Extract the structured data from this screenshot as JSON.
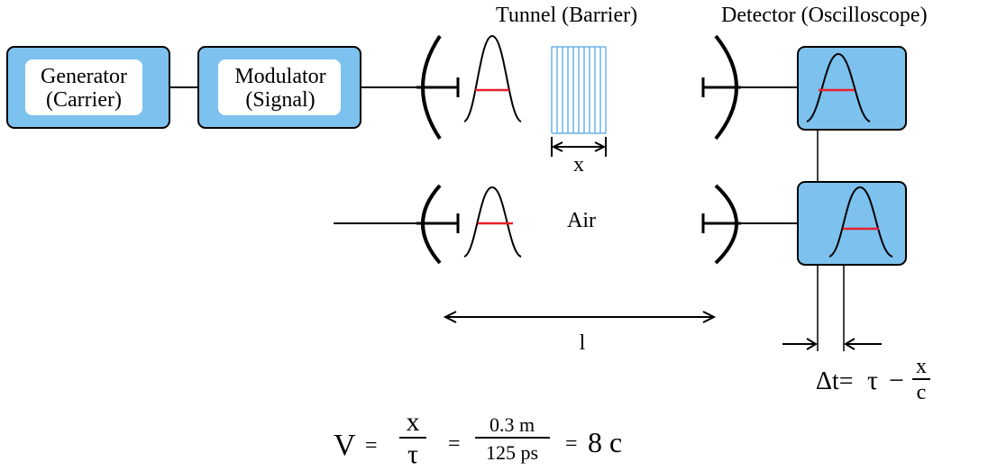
{
  "blocks": {
    "generator": {
      "line1": "Generator",
      "line2": "(Carrier)"
    },
    "modulator": {
      "line1": "Modulator",
      "line2": "(Signal)"
    }
  },
  "labels": {
    "tunnel": "Tunnel (Barrier)",
    "detector": "Detector (Oscilloscope)",
    "air": "Air",
    "barrier_width": "x",
    "distance": "l"
  },
  "delay": {
    "lhs": "Δt=",
    "tau": "τ",
    "minus": "−",
    "num": "x",
    "den": "c"
  },
  "velocity": {
    "v": "V",
    "eq1": "=",
    "num1": "x",
    "den1": "τ",
    "eq2": "=",
    "num2": "0.3 m",
    "den2": "125 ps",
    "eq3": "=",
    "result": "8 c"
  },
  "colors": {
    "block_fill": "#7dc1ee",
    "barrier": "#6ab2e8",
    "pulse_marker": "#e8202a"
  }
}
